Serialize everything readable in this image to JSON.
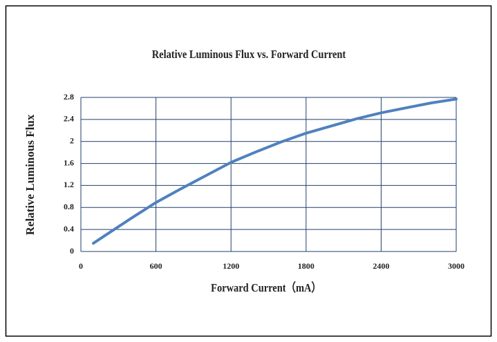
{
  "chart_data": {
    "type": "line",
    "title": "Relative Luminous Flux vs. Forward Current",
    "x_label": "Forward Current（mA）",
    "y_label": "Relative Luminous Flux",
    "x": [
      100,
      200,
      400,
      600,
      800,
      1000,
      1200,
      1400,
      1600,
      1800,
      2000,
      2200,
      2400,
      2600,
      2800,
      3000
    ],
    "series": [
      {
        "name": "Relative Luminous Flux",
        "color": "#4f81bd",
        "values": [
          0.15,
          0.3,
          0.6,
          0.89,
          1.14,
          1.38,
          1.62,
          1.81,
          1.99,
          2.15,
          2.28,
          2.41,
          2.52,
          2.61,
          2.7,
          2.77
        ]
      }
    ],
    "xlim": [
      0,
      3000
    ],
    "xticks": [
      0,
      600,
      1200,
      1800,
      2400,
      3000
    ],
    "ylim": [
      0,
      2.8
    ],
    "yticks": [
      0,
      0.4,
      0.8,
      1.2,
      1.6,
      2,
      2.4,
      2.8
    ],
    "grid": true
  }
}
